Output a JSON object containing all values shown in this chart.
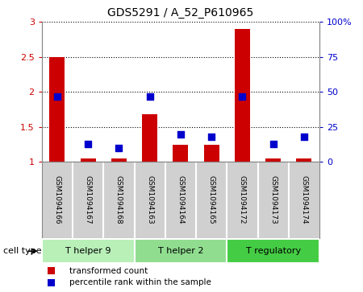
{
  "title": "GDS5291 / A_52_P610965",
  "samples": [
    "GSM1094166",
    "GSM1094167",
    "GSM1094168",
    "GSM1094163",
    "GSM1094164",
    "GSM1094165",
    "GSM1094172",
    "GSM1094173",
    "GSM1094174"
  ],
  "transformed_count": [
    2.5,
    1.05,
    1.05,
    1.68,
    1.25,
    1.25,
    2.9,
    1.05,
    1.05
  ],
  "percentile_rank": [
    47,
    13,
    10,
    47,
    20,
    18,
    47,
    13,
    18
  ],
  "ylim_left": [
    1,
    3
  ],
  "ylim_right": [
    0,
    100
  ],
  "yticks_left": [
    1,
    1.5,
    2,
    2.5,
    3
  ],
  "yticks_right": [
    0,
    25,
    50,
    75,
    100
  ],
  "ytick_labels_right": [
    "0",
    "25",
    "50",
    "75",
    "100%"
  ],
  "cell_groups": [
    {
      "label": "T helper 9",
      "indices": [
        0,
        1,
        2
      ],
      "color": "#b8f0b8"
    },
    {
      "label": "T helper 2",
      "indices": [
        3,
        4,
        5
      ],
      "color": "#90dd90"
    },
    {
      "label": "T regulatory",
      "indices": [
        6,
        7,
        8
      ],
      "color": "#44cc44"
    }
  ],
  "bar_color": "#cc0000",
  "dot_color": "#0000cc",
  "bar_width": 0.5,
  "dot_size": 30,
  "background_color": "#ffffff",
  "plot_bg_color": "#ffffff",
  "grid_color": "#000000",
  "cell_type_label": "cell type",
  "legend_items": [
    "transformed count",
    "percentile rank within the sample"
  ],
  "legend_colors": [
    "#cc0000",
    "#0000cc"
  ],
  "left_tick_color": "#cc0000",
  "right_tick_color": "#0000cc",
  "sample_box_color": "#d0d0d0",
  "sample_box_border": "#888888"
}
